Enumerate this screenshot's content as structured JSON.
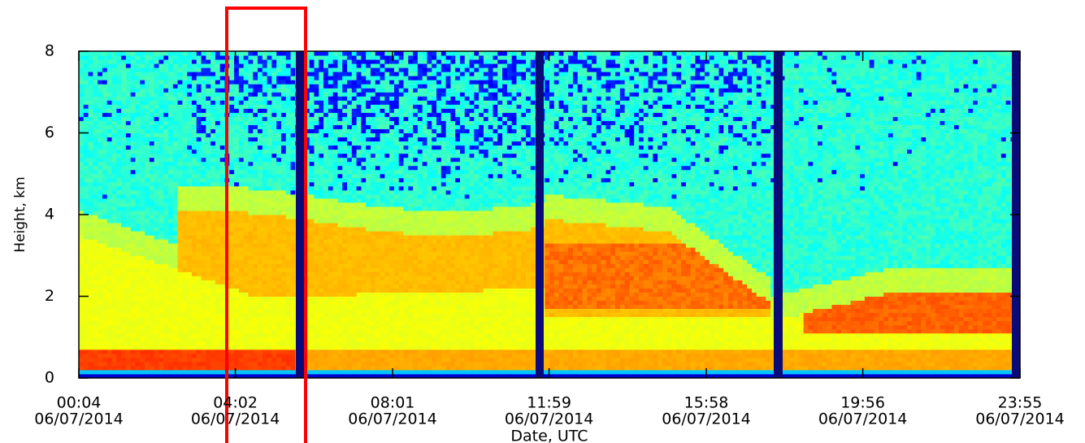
{
  "chart_data": {
    "type": "heatmap",
    "xlabel": "Date, UTC",
    "ylabel": "Height, km",
    "xlim": [
      4,
      1435
    ],
    "ylim": [
      0,
      8
    ],
    "yticks": [
      0,
      2,
      4,
      6,
      8
    ],
    "xticks": [
      {
        "value": 4,
        "label": "00:04",
        "date": "06/07/2014"
      },
      {
        "value": 242,
        "label": "04:02",
        "date": "06/07/2014"
      },
      {
        "value": 481,
        "label": "08:01",
        "date": "06/07/2014"
      },
      {
        "value": 719,
        "label": "11:59",
        "date": "06/07/2014"
      },
      {
        "value": 958,
        "label": "15:58",
        "date": "06/07/2014"
      },
      {
        "value": 1196,
        "label": "19:56",
        "date": "06/07/2014"
      },
      {
        "value": 1435,
        "label": "23:55",
        "date": "06/07/2014"
      }
    ]
  }
}
